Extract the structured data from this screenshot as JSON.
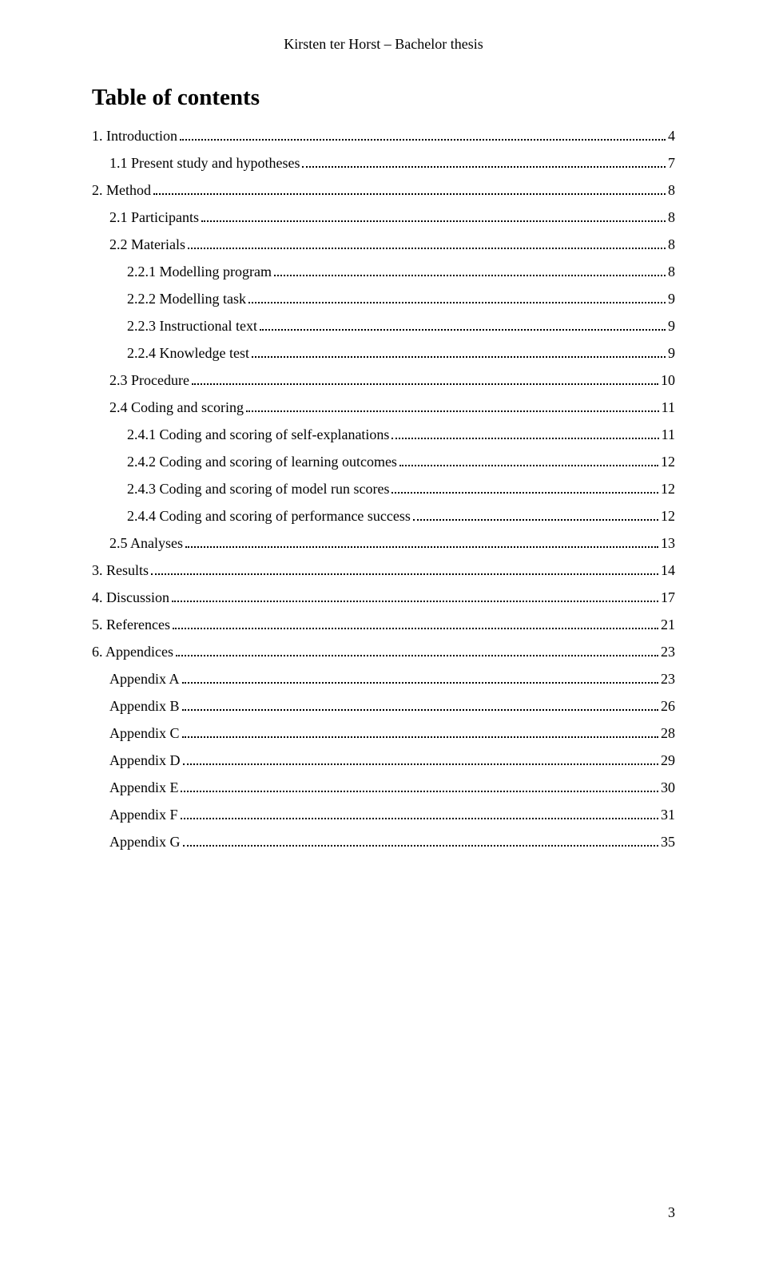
{
  "header": "Kirsten ter Horst – Bachelor thesis",
  "title": "Table of contents",
  "pageNumber": "3",
  "toc": [
    {
      "label": "1. Introduction",
      "page": "4",
      "indent": 0
    },
    {
      "label": "1.1 Present study and hypotheses",
      "page": "7",
      "indent": 1
    },
    {
      "label": "2. Method",
      "page": "8",
      "indent": 0
    },
    {
      "label": "2.1 Participants",
      "page": "8",
      "indent": 1
    },
    {
      "label": "2.2 Materials",
      "page": "8",
      "indent": 1
    },
    {
      "label": "2.2.1 Modelling program",
      "page": "8",
      "indent": 2
    },
    {
      "label": "2.2.2 Modelling task",
      "page": "9",
      "indent": 2
    },
    {
      "label": "2.2.3 Instructional text",
      "page": "9",
      "indent": 2
    },
    {
      "label": "2.2.4 Knowledge test",
      "page": "9",
      "indent": 2
    },
    {
      "label": "2.3 Procedure",
      "page": "10",
      "indent": 1
    },
    {
      "label": "2.4 Coding and scoring",
      "page": "11",
      "indent": 1
    },
    {
      "label": "2.4.1 Coding and scoring of self-explanations",
      "page": "11",
      "indent": 2
    },
    {
      "label": "2.4.2 Coding and scoring of learning outcomes",
      "page": "12",
      "indent": 2
    },
    {
      "label": "2.4.3 Coding and scoring of model run scores",
      "page": "12",
      "indent": 2
    },
    {
      "label": "2.4.4 Coding and scoring of performance success",
      "page": "12",
      "indent": 2
    },
    {
      "label": "2.5 Analyses",
      "page": "13",
      "indent": 1
    },
    {
      "label": "3. Results",
      "page": "14",
      "indent": 0
    },
    {
      "label": "4. Discussion",
      "page": "17",
      "indent": 0
    },
    {
      "label": "5. References",
      "page": "21",
      "indent": 0
    },
    {
      "label": "6. Appendices",
      "page": "23",
      "indent": 0
    },
    {
      "label": "Appendix A",
      "page": "23",
      "indent": 1
    },
    {
      "label": "Appendix B",
      "page": "26",
      "indent": 1
    },
    {
      "label": "Appendix C",
      "page": "28",
      "indent": 1
    },
    {
      "label": "Appendix D",
      "page": "29",
      "indent": 1
    },
    {
      "label": "Appendix E",
      "page": "30",
      "indent": 1
    },
    {
      "label": "Appendix F",
      "page": "31",
      "indent": 1
    },
    {
      "label": "Appendix G",
      "page": "35",
      "indent": 1
    }
  ]
}
